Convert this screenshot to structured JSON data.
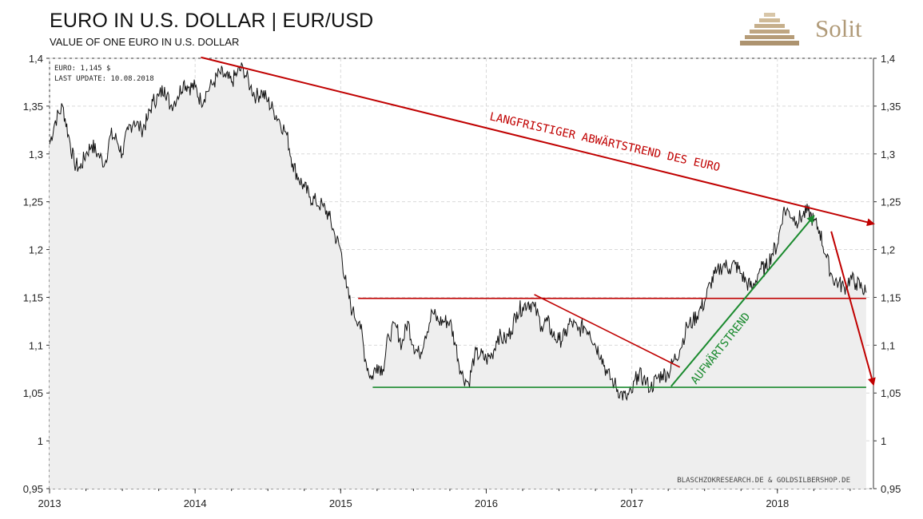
{
  "header": {
    "title": "EURO IN U.S. DOLLAR | EUR/USD",
    "subtitle": "VALUE OF ONE EURO IN U.S. DOLLAR"
  },
  "logo": {
    "text": "Solit",
    "color": "#b09a78"
  },
  "info_box": {
    "euro_line": "EURO: 1,145 $",
    "update_line": "LAST UPDATE: 10.08.2018"
  },
  "credit": "BLASCHZOKRESEARCH.DE & GOLDSILBERSHOP.DE",
  "annotations": {
    "long_term": "LANGFRISTIGER ABWÄRTSTREND DES EURO",
    "uptrend": "AUFWÄRTSTREND"
  },
  "colors": {
    "price_line": "#111111",
    "area_fill": "#eeeeee",
    "grid": "#d9d9d9",
    "red_trend": "#c00000",
    "green_trend": "#1a8a2e",
    "axis_text": "#222222"
  },
  "chart_data": {
    "type": "line",
    "title": "EURO IN U.S. DOLLAR | EUR/USD",
    "subtitle": "VALUE OF ONE EURO IN U.S. DOLLAR",
    "ylim": [
      0.95,
      1.4
    ],
    "xlim": [
      2013.0,
      2018.66
    ],
    "y_ticks": [
      {
        "value": 1.4,
        "label": "1,4"
      },
      {
        "value": 1.35,
        "label": "1,35"
      },
      {
        "value": 1.3,
        "label": "1,3"
      },
      {
        "value": 1.25,
        "label": "1,25"
      },
      {
        "value": 1.2,
        "label": "1,2"
      },
      {
        "value": 1.15,
        "label": "1,15"
      },
      {
        "value": 1.1,
        "label": "1,1"
      },
      {
        "value": 1.05,
        "label": "1,05"
      },
      {
        "value": 1.0,
        "label": "1"
      },
      {
        "value": 0.95,
        "label": "0,95"
      }
    ],
    "x_ticks": [
      {
        "value": 2013,
        "label": "2013"
      },
      {
        "value": 2014,
        "label": "2014"
      },
      {
        "value": 2015,
        "label": "2015"
      },
      {
        "value": 2016,
        "label": "2016"
      },
      {
        "value": 2017,
        "label": "2017"
      },
      {
        "value": 2018,
        "label": "2018"
      }
    ],
    "grid": true,
    "series": [
      {
        "points": [
          [
            2013.0,
            1.31
          ],
          [
            2013.04,
            1.335
          ],
          [
            2013.09,
            1.35
          ],
          [
            2013.13,
            1.32
          ],
          [
            2013.17,
            1.29
          ],
          [
            2013.21,
            1.285
          ],
          [
            2013.25,
            1.3
          ],
          [
            2013.29,
            1.31
          ],
          [
            2013.33,
            1.3
          ],
          [
            2013.38,
            1.29
          ],
          [
            2013.42,
            1.32
          ],
          [
            2013.46,
            1.315
          ],
          [
            2013.5,
            1.3
          ],
          [
            2013.54,
            1.325
          ],
          [
            2013.58,
            1.335
          ],
          [
            2013.63,
            1.325
          ],
          [
            2013.67,
            1.335
          ],
          [
            2013.71,
            1.355
          ],
          [
            2013.75,
            1.36
          ],
          [
            2013.79,
            1.37
          ],
          [
            2013.83,
            1.35
          ],
          [
            2013.88,
            1.36
          ],
          [
            2013.92,
            1.375
          ],
          [
            2013.96,
            1.37
          ],
          [
            2014.0,
            1.37
          ],
          [
            2014.04,
            1.355
          ],
          [
            2014.08,
            1.365
          ],
          [
            2014.13,
            1.375
          ],
          [
            2014.17,
            1.385
          ],
          [
            2014.21,
            1.38
          ],
          [
            2014.25,
            1.375
          ],
          [
            2014.29,
            1.385
          ],
          [
            2014.33,
            1.39
          ],
          [
            2014.38,
            1.37
          ],
          [
            2014.42,
            1.36
          ],
          [
            2014.46,
            1.365
          ],
          [
            2014.5,
            1.355
          ],
          [
            2014.54,
            1.345
          ],
          [
            2014.58,
            1.335
          ],
          [
            2014.63,
            1.32
          ],
          [
            2014.67,
            1.29
          ],
          [
            2014.71,
            1.275
          ],
          [
            2014.75,
            1.265
          ],
          [
            2014.79,
            1.255
          ],
          [
            2014.83,
            1.25
          ],
          [
            2014.88,
            1.245
          ],
          [
            2014.92,
            1.235
          ],
          [
            2014.96,
            1.215
          ],
          [
            2015.0,
            1.2
          ],
          [
            2015.04,
            1.16
          ],
          [
            2015.08,
            1.135
          ],
          [
            2015.13,
            1.125
          ],
          [
            2015.17,
            1.085
          ],
          [
            2015.21,
            1.065
          ],
          [
            2015.25,
            1.08
          ],
          [
            2015.29,
            1.075
          ],
          [
            2015.33,
            1.11
          ],
          [
            2015.38,
            1.12
          ],
          [
            2015.42,
            1.1
          ],
          [
            2015.46,
            1.125
          ],
          [
            2015.5,
            1.1
          ],
          [
            2015.54,
            1.09
          ],
          [
            2015.58,
            1.11
          ],
          [
            2015.63,
            1.135
          ],
          [
            2015.67,
            1.125
          ],
          [
            2015.71,
            1.125
          ],
          [
            2015.75,
            1.125
          ],
          [
            2015.79,
            1.1
          ],
          [
            2015.83,
            1.07
          ],
          [
            2015.88,
            1.06
          ],
          [
            2015.92,
            1.09
          ],
          [
            2015.96,
            1.09
          ],
          [
            2016.0,
            1.085
          ],
          [
            2016.04,
            1.09
          ],
          [
            2016.08,
            1.11
          ],
          [
            2016.13,
            1.105
          ],
          [
            2016.17,
            1.115
          ],
          [
            2016.21,
            1.135
          ],
          [
            2016.25,
            1.14
          ],
          [
            2016.29,
            1.145
          ],
          [
            2016.33,
            1.14
          ],
          [
            2016.38,
            1.12
          ],
          [
            2016.42,
            1.125
          ],
          [
            2016.46,
            1.11
          ],
          [
            2016.5,
            1.105
          ],
          [
            2016.54,
            1.11
          ],
          [
            2016.58,
            1.125
          ],
          [
            2016.63,
            1.115
          ],
          [
            2016.67,
            1.12
          ],
          [
            2016.71,
            1.115
          ],
          [
            2016.75,
            1.1
          ],
          [
            2016.79,
            1.09
          ],
          [
            2016.83,
            1.07
          ],
          [
            2016.88,
            1.06
          ],
          [
            2016.92,
            1.05
          ],
          [
            2016.96,
            1.045
          ],
          [
            2017.0,
            1.05
          ],
          [
            2017.04,
            1.07
          ],
          [
            2017.08,
            1.065
          ],
          [
            2017.13,
            1.055
          ],
          [
            2017.17,
            1.065
          ],
          [
            2017.21,
            1.07
          ],
          [
            2017.25,
            1.07
          ],
          [
            2017.29,
            1.085
          ],
          [
            2017.33,
            1.095
          ],
          [
            2017.38,
            1.12
          ],
          [
            2017.42,
            1.125
          ],
          [
            2017.46,
            1.135
          ],
          [
            2017.5,
            1.145
          ],
          [
            2017.54,
            1.165
          ],
          [
            2017.58,
            1.175
          ],
          [
            2017.63,
            1.185
          ],
          [
            2017.67,
            1.18
          ],
          [
            2017.71,
            1.185
          ],
          [
            2017.75,
            1.175
          ],
          [
            2017.79,
            1.165
          ],
          [
            2017.83,
            1.16
          ],
          [
            2017.88,
            1.18
          ],
          [
            2017.92,
            1.18
          ],
          [
            2017.96,
            1.195
          ],
          [
            2018.0,
            1.205
          ],
          [
            2018.04,
            1.24
          ],
          [
            2018.08,
            1.24
          ],
          [
            2018.13,
            1.23
          ],
          [
            2018.17,
            1.235
          ],
          [
            2018.21,
            1.24
          ],
          [
            2018.25,
            1.23
          ],
          [
            2018.29,
            1.22
          ],
          [
            2018.33,
            1.195
          ],
          [
            2018.38,
            1.17
          ],
          [
            2018.42,
            1.165
          ],
          [
            2018.46,
            1.16
          ],
          [
            2018.5,
            1.17
          ],
          [
            2018.54,
            1.165
          ],
          [
            2018.58,
            1.16
          ],
          [
            2018.61,
            1.155
          ]
        ]
      }
    ],
    "trend_lines": [
      {
        "color": "red",
        "from": [
          2014.04,
          1.401
        ],
        "to": [
          2018.66,
          1.227
        ],
        "arrow": true
      },
      {
        "color": "red",
        "from": [
          2015.12,
          1.149
        ],
        "to": [
          2018.61,
          1.149
        ],
        "arrow": false
      },
      {
        "color": "red",
        "from": [
          2016.33,
          1.153
        ],
        "to": [
          2017.33,
          1.077
        ],
        "arrow": false
      },
      {
        "color": "red",
        "from": [
          2018.37,
          1.219
        ],
        "to": [
          2018.66,
          1.059
        ],
        "arrow": true
      },
      {
        "color": "green",
        "from": [
          2015.22,
          1.056
        ],
        "to": [
          2018.61,
          1.056
        ],
        "arrow": false
      },
      {
        "color": "green",
        "from": [
          2017.27,
          1.057
        ],
        "to": [
          2018.25,
          1.235
        ],
        "arrow": true
      }
    ]
  }
}
